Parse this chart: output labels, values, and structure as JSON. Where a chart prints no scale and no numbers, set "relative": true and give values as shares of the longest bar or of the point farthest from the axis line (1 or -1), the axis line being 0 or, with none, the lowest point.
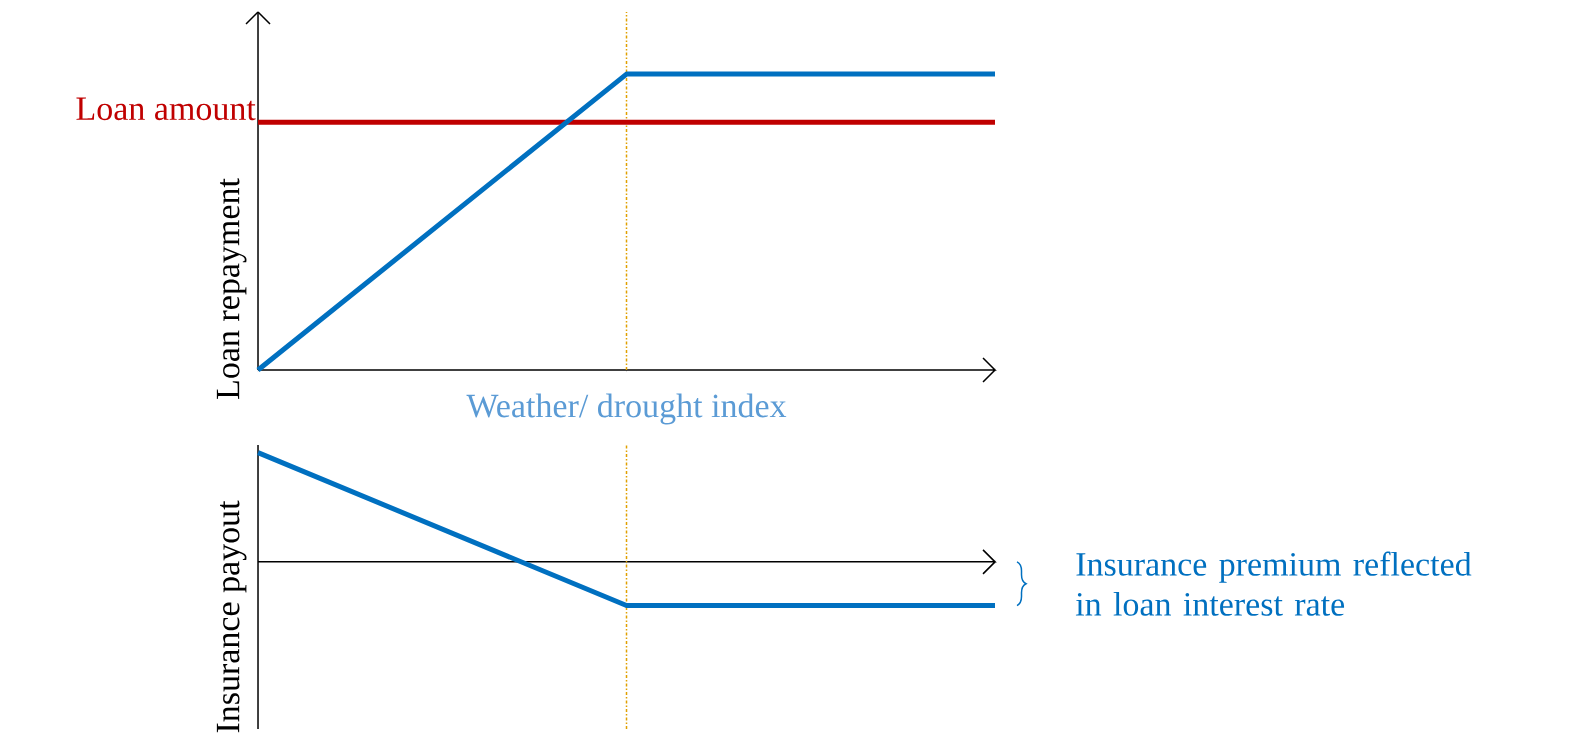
{
  "chart_data": [
    {
      "type": "line",
      "relative": true,
      "xlabel": "Weather/ drought index",
      "ylabel": "Loan repayment",
      "categories": [
        null,
        null,
        null
      ],
      "series": [
        {
          "name": "Loan amount",
          "color": "#c00000",
          "values": [
            0.837,
            0.837,
            0.837
          ]
        },
        {
          "color": "#0070c0",
          "values": [
            0,
            1,
            1
          ]
        }
      ]
    },
    {
      "type": "line",
      "relative": true,
      "ylabel": "Insurance payout",
      "categories": [
        null,
        null,
        null
      ],
      "series": [
        {
          "color": "#0070c0",
          "values": [
            1,
            -0.4,
            -0.4
          ]
        }
      ],
      "annotations": [
        "Insurance premium reflected in loan interest rate"
      ]
    }
  ]
}
